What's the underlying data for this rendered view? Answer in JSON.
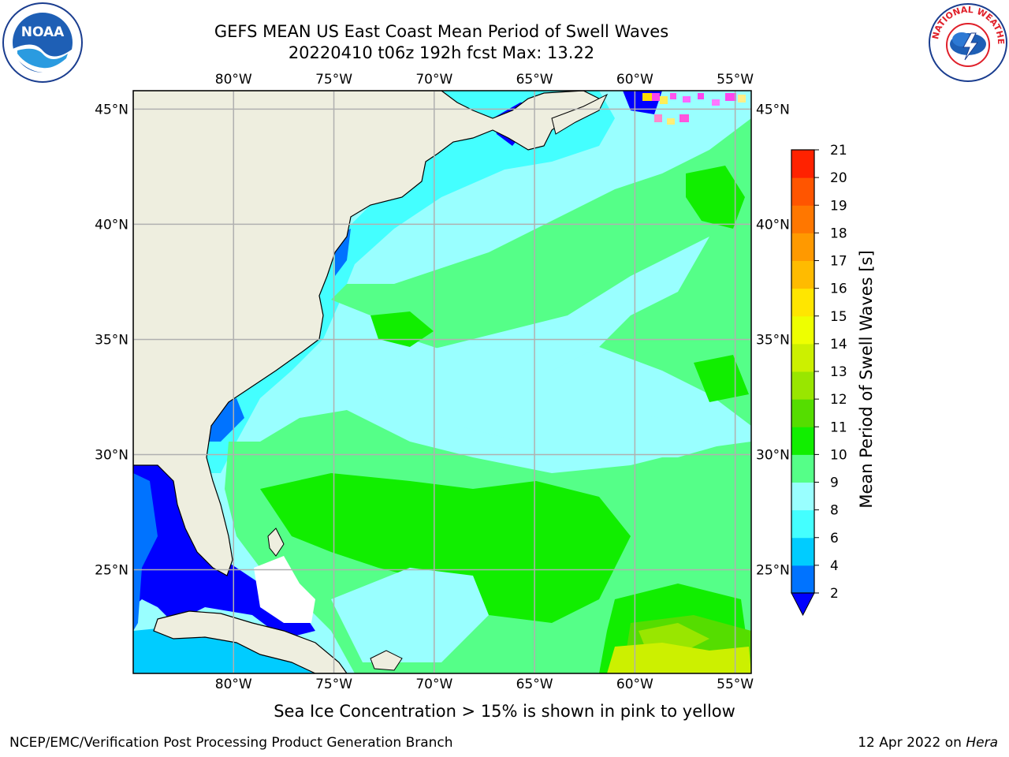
{
  "header": {
    "title_line1": "GEFS MEAN US East Coast Mean Period of Swell Waves",
    "title_line2": "20220410 t06z 192h fcst   Max: 13.22"
  },
  "logos": {
    "left": {
      "icon": "noaa-logo",
      "text": "NOAA"
    },
    "right": {
      "icon": "nws-logo",
      "text": "NATIONAL WEATHER SERVICE"
    }
  },
  "map": {
    "projection": "lat-lon",
    "extent": {
      "lon_min": -85,
      "lon_max": -54.2,
      "lat_min": 20.5,
      "lat_max": 45.8
    },
    "lon_ticks": [
      {
        "value": -80,
        "label": "80°W"
      },
      {
        "value": -75,
        "label": "75°W"
      },
      {
        "value": -70,
        "label": "70°W"
      },
      {
        "value": -65,
        "label": "65°W"
      },
      {
        "value": -60,
        "label": "60°W"
      },
      {
        "value": -55,
        "label": "55°W"
      }
    ],
    "lat_ticks": [
      {
        "value": 45,
        "label": "45°N"
      },
      {
        "value": 40,
        "label": "40°N"
      },
      {
        "value": 35,
        "label": "35°N"
      },
      {
        "value": 30,
        "label": "30°N"
      },
      {
        "value": 25,
        "label": "25°N"
      }
    ],
    "land_color": "#eeeedf",
    "grid_color": "#b0b0b0"
  },
  "colorbar": {
    "label": "Mean Period of Swell Waves [s]",
    "ticks": [
      2,
      4,
      6,
      8,
      9,
      10,
      11,
      12,
      13,
      14,
      15,
      16,
      17,
      18,
      19,
      20,
      21
    ],
    "tick_labels": [
      "2",
      "4",
      "6",
      "8",
      "9",
      "10",
      "11",
      "12",
      "13",
      "14",
      "15",
      "16",
      "17",
      "18",
      "19",
      "20",
      "21"
    ],
    "colors": [
      "#0073ff",
      "#00ccff",
      "#44ffff",
      "#99ffff",
      "#55ff88",
      "#11ee00",
      "#55dd00",
      "#99e600",
      "#ccf000",
      "#eeff00",
      "#ffe600",
      "#ffbb00",
      "#ff9900",
      "#ff7700",
      "#ff5500",
      "#ff2200"
    ],
    "under_color": "#0000ff"
  },
  "chart_data": {
    "type": "heatmap",
    "variable": "Mean Period of Swell Waves [s]",
    "max": 13.22,
    "bins": [
      2,
      4,
      6,
      8,
      9,
      10,
      11,
      12,
      13,
      14,
      15,
      16,
      17,
      18,
      19,
      20,
      21
    ]
  },
  "footer": {
    "note": "Sea Ice Concentration > 15% is shown in pink to yellow",
    "credit_left": "NCEP/EMC/Verification Post Processing Product Generation Branch",
    "credit_date": "12 Apr 2022 on ",
    "credit_host": "Hera"
  }
}
